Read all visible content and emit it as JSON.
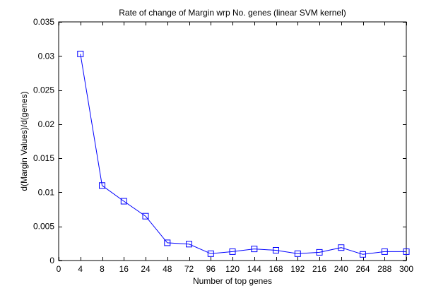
{
  "chart_data": {
    "type": "line",
    "title": "Rate of change of Margin wrp No. genes (linear SVM kernel)",
    "xlabel": "Number of top genes",
    "ylabel": "d(Margin Values)/d(genes)",
    "x_tick_labels": [
      "0",
      "4",
      "8",
      "16",
      "24",
      "48",
      "72",
      "96",
      "120",
      "144",
      "168",
      "192",
      "216",
      "240",
      "264",
      "288",
      "300"
    ],
    "y_tick_labels": [
      "0",
      "0.005",
      "0.01",
      "0.015",
      "0.02",
      "0.025",
      "0.03",
      "0.035"
    ],
    "ylim": [
      0,
      0.035
    ],
    "grid": false,
    "marker": "square",
    "series": [
      {
        "color": "#0000ff",
        "x": [
          "4",
          "8",
          "16",
          "24",
          "48",
          "72",
          "96",
          "120",
          "144",
          "168",
          "192",
          "216",
          "240",
          "264",
          "288",
          "300"
        ],
        "values": [
          0.0303,
          0.011,
          0.0087,
          0.0065,
          0.0026,
          0.0024,
          0.001,
          0.0013,
          0.0017,
          0.0015,
          0.001,
          0.0012,
          0.0019,
          0.0009,
          0.0013,
          0.0013
        ]
      }
    ]
  }
}
